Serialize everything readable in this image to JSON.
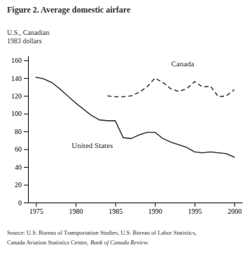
{
  "chart_data": {
    "type": "line",
    "title": "Figure 2.  Average domestic airfare",
    "y_label": [
      "U.S., Canadian",
      "1983 dollars"
    ],
    "series": [
      {
        "name": "United States",
        "color": "#3a3a3a",
        "line_style": "solid",
        "x": [
          1975,
          1976,
          1977,
          1978,
          1979,
          1980,
          1981,
          1982,
          1983,
          1984,
          1985,
          1986,
          1987,
          1988,
          1989,
          1990,
          1991,
          1992,
          1993,
          1994,
          1995,
          1996,
          1997,
          1998,
          1999,
          2000
        ],
        "values": [
          141,
          139,
          135,
          128,
          120,
          112,
          105,
          98,
          93,
          92,
          92,
          73,
          72,
          76,
          79,
          79,
          72,
          68,
          65,
          62,
          57,
          56,
          57,
          56,
          55,
          51
        ]
      },
      {
        "name": "Canada",
        "color": "#3a3a3a",
        "line_style": "dashed",
        "x": [
          1984,
          1985,
          1986,
          1987,
          1988,
          1989,
          1990,
          1991,
          1992,
          1993,
          1994,
          1995,
          1996,
          1997,
          1998,
          1999,
          2000
        ],
        "values": [
          120,
          119,
          119,
          120,
          124,
          130,
          140,
          135,
          128,
          125,
          128,
          136,
          130,
          131,
          119,
          120,
          127
        ]
      }
    ],
    "annotations": [
      {
        "text": "United States",
        "x": 1979.5,
        "y": 63
      },
      {
        "text": "Canada",
        "x": 1993.5,
        "y": 151
      }
    ],
    "source": [
      "Source: U.S. Bureau of Transportation Studies, U.S. Bureau of Labor Statistics,",
      "Canada Aviation Statistics Centre,",
      "Bank of Canada Review."
    ],
    "xlim": [
      1974,
      2001
    ],
    "ylim": [
      0,
      165
    ],
    "xticks": [
      1975,
      1980,
      1985,
      1990,
      1995,
      2000
    ],
    "yticks": [
      0,
      20,
      40,
      60,
      80,
      100,
      120,
      140,
      160
    ],
    "grid": false
  }
}
